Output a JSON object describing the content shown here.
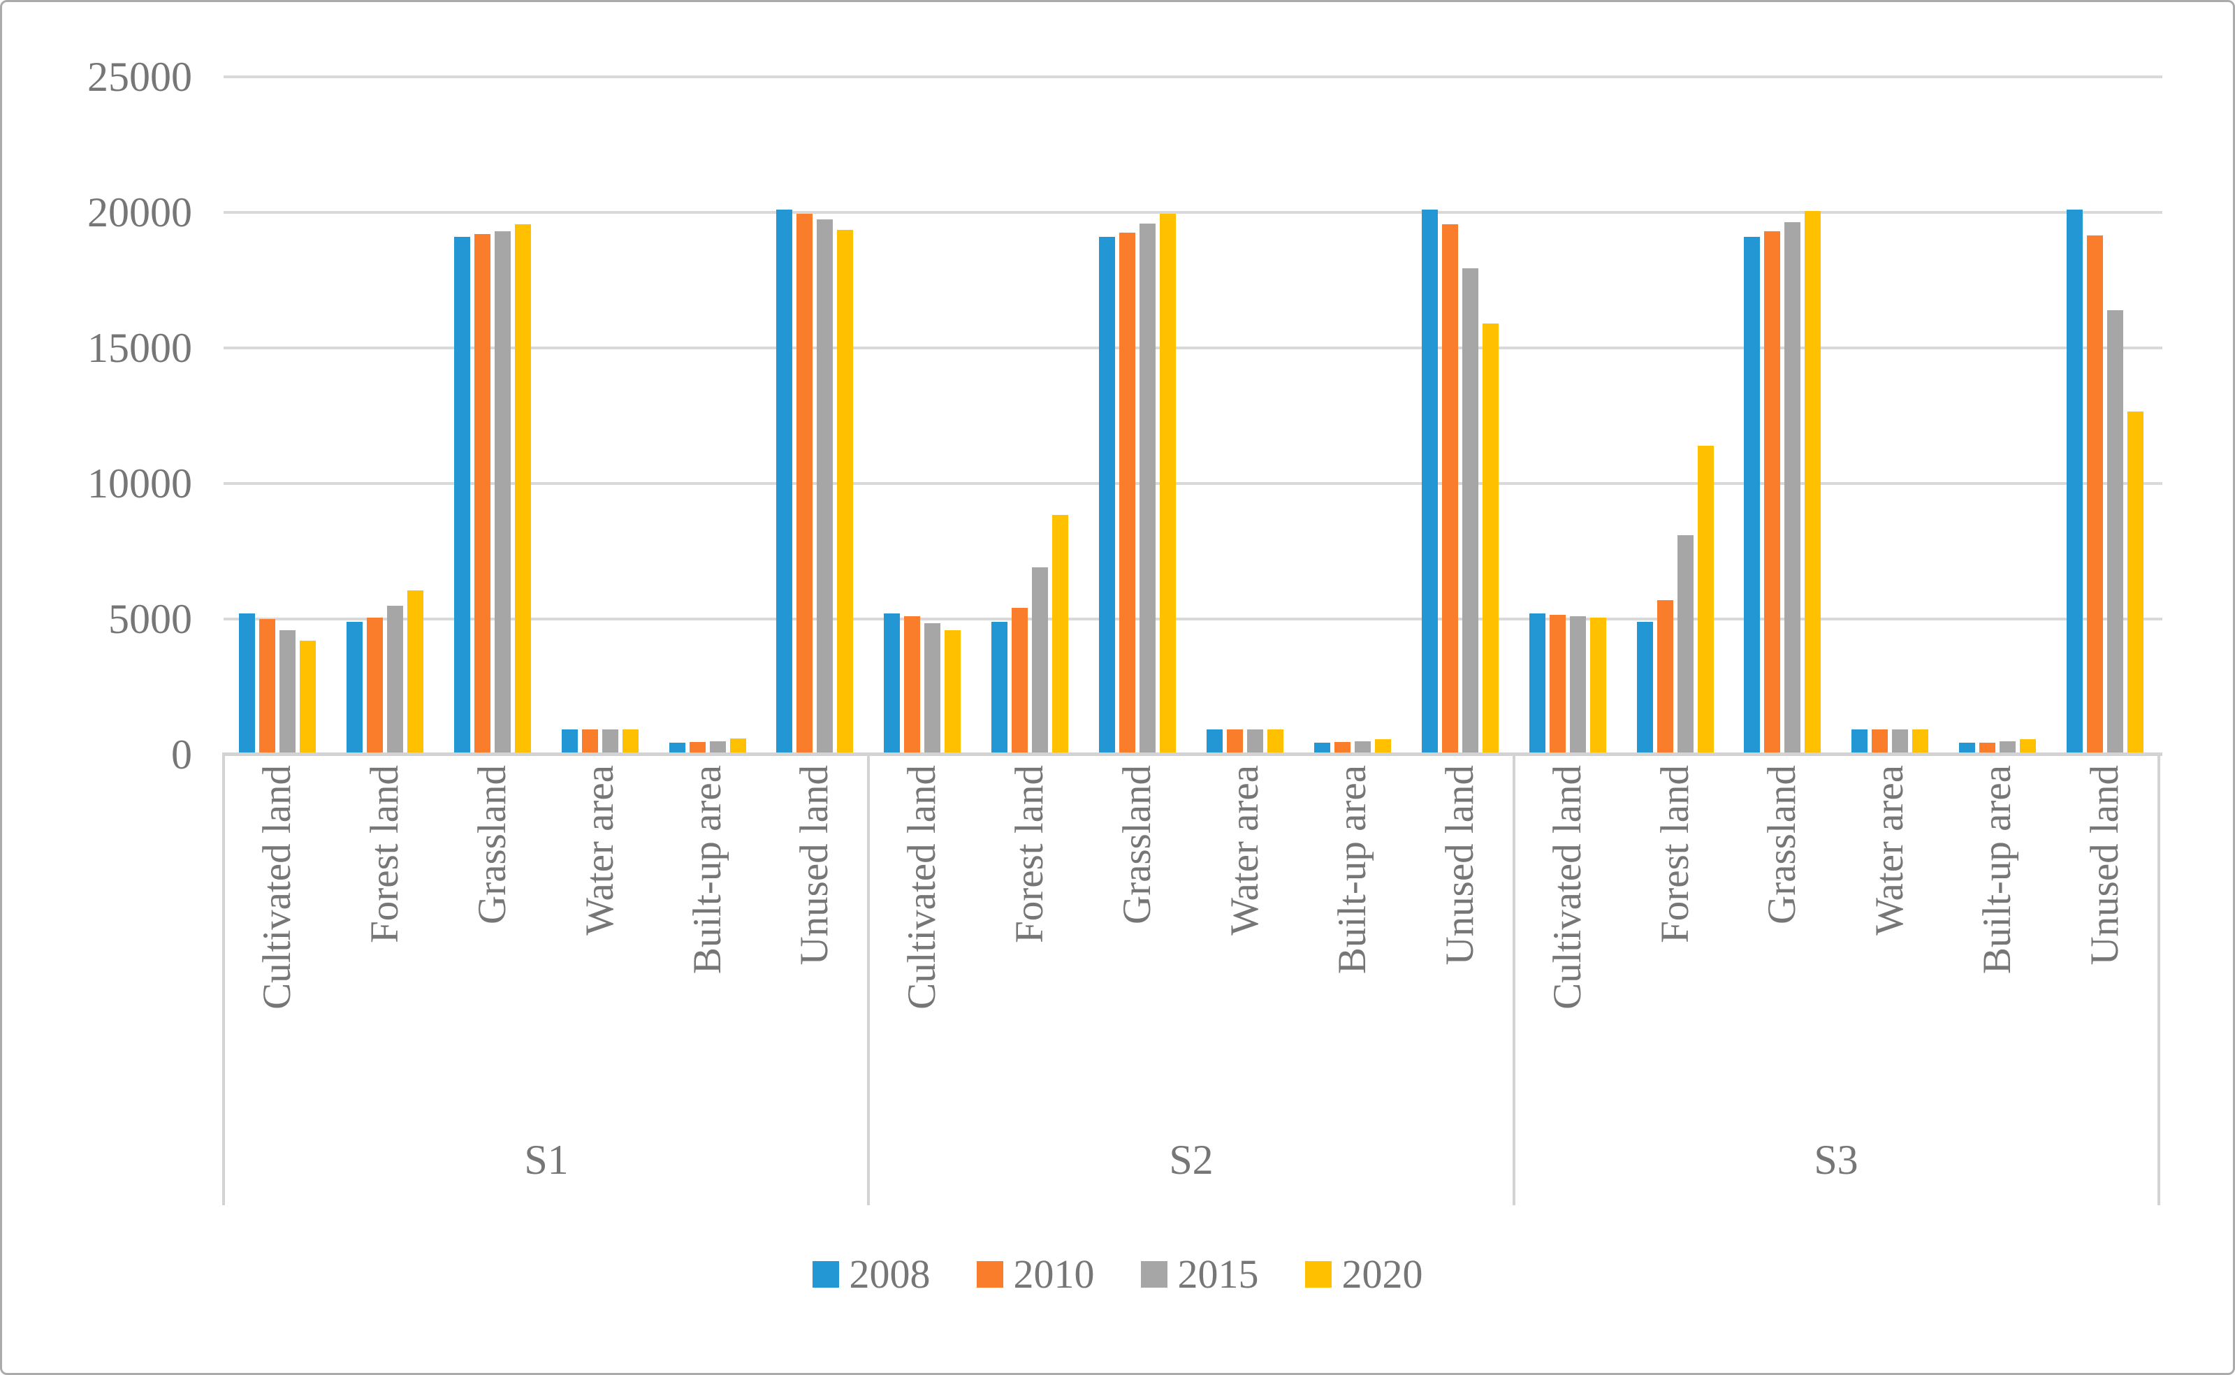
{
  "figure": {
    "background": "#FFFFFF",
    "border_color": "#ABABAB",
    "text_color": "#767676",
    "gridline_color": "#D9D9D9",
    "axisline_color": "#D3D3D3"
  },
  "y_axis": {
    "tick_labels": [
      "0",
      "5000",
      "10000",
      "15000",
      "20000",
      "25000"
    ],
    "tick_values": [
      0,
      5000,
      10000,
      15000,
      20000,
      25000
    ]
  },
  "legend": {
    "items": [
      {
        "label": "2008",
        "color": "#2397D4"
      },
      {
        "label": "2010",
        "color": "#F97D2B"
      },
      {
        "label": "2015",
        "color": "#A6A6A6"
      },
      {
        "label": "2020",
        "color": "#FFC000"
      }
    ]
  },
  "chart_data": {
    "type": "bar",
    "title": "",
    "xlabel": "",
    "ylabel": "",
    "ylim": [
      0,
      25000
    ],
    "ytick_step": 5000,
    "grid": true,
    "legend_position": "bottom",
    "categories": [
      "Cultivated land",
      "Forest land",
      "Grassland",
      "Water area",
      "Built-up area",
      "Unused land"
    ],
    "series_names": [
      "2008",
      "2010",
      "2015",
      "2020"
    ],
    "series_colors": [
      "#2397D4",
      "#F97D2B",
      "#A6A6A6",
      "#FFC000"
    ],
    "panels": [
      {
        "label": "S1",
        "series": [
          {
            "name": "2008",
            "values": [
              5200,
              4900,
              19100,
              930,
              450,
              20100
            ]
          },
          {
            "name": "2010",
            "values": [
              5000,
              5050,
              19200,
              930,
              460,
              19950
            ]
          },
          {
            "name": "2015",
            "values": [
              4600,
              5500,
              19300,
              930,
              500,
              19750
            ]
          },
          {
            "name": "2020",
            "values": [
              4200,
              6050,
              19550,
              930,
              580,
              19350
            ]
          }
        ]
      },
      {
        "label": "S2",
        "series": [
          {
            "name": "2008",
            "values": [
              5200,
              4900,
              19100,
              930,
              440,
              20100
            ]
          },
          {
            "name": "2010",
            "values": [
              5100,
              5400,
              19250,
              930,
              455,
              19550
            ]
          },
          {
            "name": "2015",
            "values": [
              4850,
              6900,
              19600,
              930,
              495,
              17950
            ]
          },
          {
            "name": "2020",
            "values": [
              4600,
              8850,
              19950,
              920,
              570,
              15900
            ]
          }
        ]
      },
      {
        "label": "S3",
        "series": [
          {
            "name": "2008",
            "values": [
              5200,
              4900,
              19100,
              930,
              440,
              20100
            ]
          },
          {
            "name": "2010",
            "values": [
              5150,
              5700,
              19300,
              930,
              445,
              19150
            ]
          },
          {
            "name": "2015",
            "values": [
              5100,
              8100,
              19650,
              930,
              490,
              16400
            ]
          },
          {
            "name": "2020",
            "values": [
              5050,
              11400,
              20050,
              930,
              570,
              12650
            ]
          }
        ]
      }
    ]
  }
}
